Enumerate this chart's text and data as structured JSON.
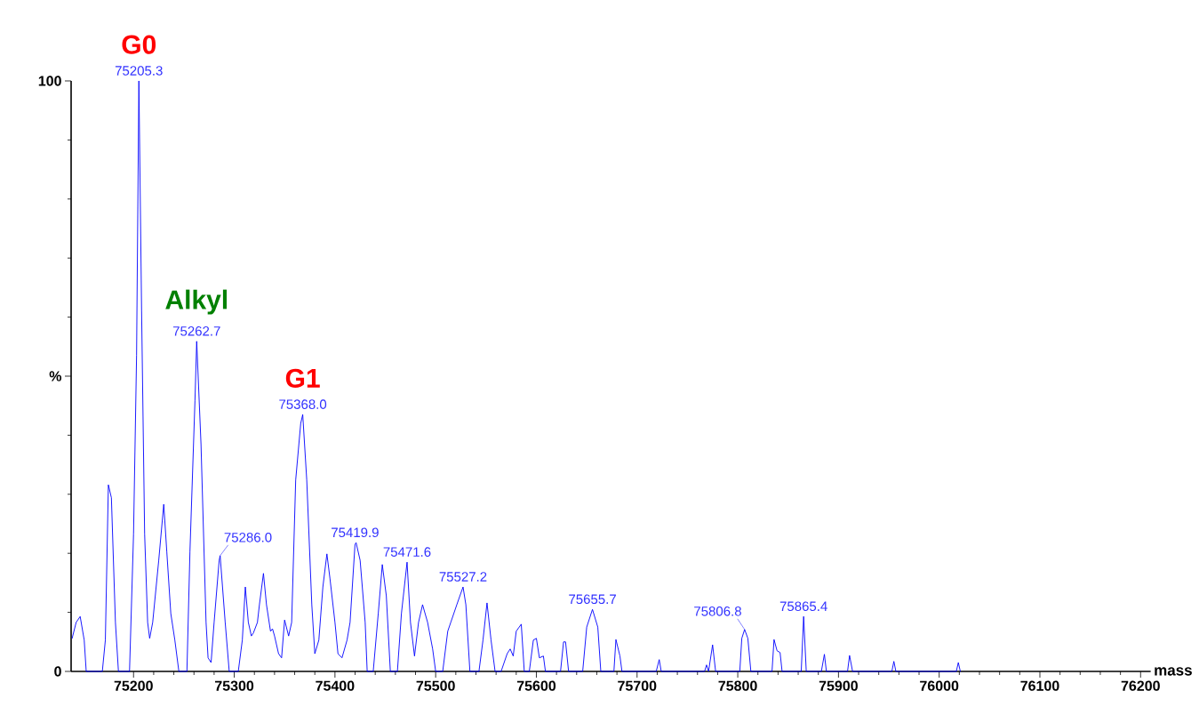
{
  "chart_data": {
    "type": "line",
    "xlabel": "mass",
    "x": [
      75139,
      75143,
      75147,
      75151,
      75153,
      75169,
      75172,
      75175,
      75178,
      75182,
      75185,
      75196,
      75200,
      75203,
      75205.3,
      75208,
      75211,
      75214,
      75216,
      75219,
      75225,
      75230,
      75233,
      75237,
      75241,
      75245,
      75253,
      75256,
      75261,
      75262.7,
      75267,
      75272,
      75274,
      75277,
      75280,
      75285,
      75286,
      75291,
      75295,
      75304,
      75308,
      75311,
      75314,
      75317,
      75319,
      75323,
      75325,
      75329,
      75332,
      75336,
      75338,
      75340,
      75344,
      75347,
      75350,
      75354,
      75357,
      75361,
      75366,
      75368,
      75372,
      75377,
      75380,
      75384,
      75388,
      75392,
      75395,
      75400,
      75403,
      75407,
      75412,
      75415,
      75419.9,
      75421,
      75425,
      75430,
      75432,
      75438,
      75443,
      75447,
      75451,
      75455,
      75462,
      75466,
      75471.6,
      75475,
      75479,
      75483,
      75487,
      75492,
      75497,
      75500,
      75507,
      75512,
      75515,
      75521,
      75527.2,
      75530,
      75534,
      75543,
      75547,
      75551,
      75555,
      75559,
      75565,
      75571,
      75574,
      75577,
      75580,
      75585,
      75588,
      75593,
      75597,
      75600,
      75603,
      75607,
      75609,
      75624,
      75627,
      75629,
      75632,
      75646,
      75650,
      75655.7,
      75661,
      75664,
      75677,
      75679,
      75683,
      75685,
      75719,
      75722,
      75724,
      75767,
      75769,
      75771,
      75775,
      75778,
      75781,
      75802,
      75804,
      75806.8,
      75810,
      75813,
      75834,
      75836,
      75839,
      75842,
      75844,
      75863,
      75865.4,
      75868,
      75883,
      75886,
      75888,
      75909,
      75911,
      75914,
      75953,
      75955,
      75957,
      76017,
      76019,
      76021
    ],
    "series": [
      {
        "color": "#0000ff",
        "values": [
          5.6,
          8.3,
          9.3,
          5.3,
          0,
          0,
          5.3,
          31.6,
          29.4,
          8.3,
          0,
          0,
          23.3,
          53.5,
          100,
          61.0,
          23.3,
          8.3,
          5.6,
          8.3,
          18.8,
          28.3,
          20.3,
          9.8,
          5.3,
          0,
          0,
          20.3,
          45.9,
          55.9,
          38.4,
          8.3,
          2.3,
          1.5,
          8.3,
          18.8,
          19.6,
          8.3,
          0,
          0,
          5.3,
          14.3,
          8.3,
          6.0,
          6.5,
          8.3,
          11.3,
          16.6,
          11.3,
          6.8,
          7.2,
          6.0,
          3.0,
          2.3,
          8.7,
          6.0,
          8.3,
          32.4,
          42.0,
          43.5,
          32.4,
          11.3,
          3.0,
          5.3,
          14.3,
          19.9,
          15.8,
          8.3,
          3.0,
          2.3,
          5.3,
          8.3,
          21.5,
          21.8,
          18.8,
          8.3,
          0,
          0,
          9.8,
          18.1,
          12.8,
          0,
          0,
          9.8,
          18.5,
          8.3,
          2.6,
          8.3,
          11.3,
          8.3,
          3.8,
          0,
          0,
          6.8,
          8.3,
          11.3,
          14.3,
          11.3,
          0,
          0,
          5.3,
          11.6,
          5.3,
          0,
          0,
          3.0,
          3.8,
          2.6,
          6.8,
          8.0,
          0,
          0,
          5.3,
          5.6,
          2.3,
          2.6,
          0,
          0,
          5.0,
          5.0,
          0,
          0,
          7.5,
          10.5,
          7.5,
          0,
          0,
          5.4,
          2.6,
          0,
          0,
          2.0,
          0,
          0,
          1.1,
          0,
          4.5,
          0,
          0,
          0,
          5.6,
          7.1,
          5.6,
          0,
          0,
          5.4,
          3.5,
          3.2,
          0,
          0,
          9.3,
          0,
          0,
          2.9,
          0,
          0,
          2.7,
          0,
          0,
          1.7,
          0,
          0,
          1.5,
          0
        ]
      }
    ],
    "xlim": [
      75138,
      76210
    ],
    "ylim": [
      0,
      100
    ],
    "xticks": [
      75200,
      75300,
      75400,
      75500,
      75600,
      75700,
      75800,
      75900,
      76000,
      76100,
      76200
    ],
    "yticks": [
      0,
      {
        "value": 50,
        "label": "%"
      },
      100
    ],
    "marker": "none",
    "line_style": "solid",
    "annotations": [
      {
        "text": "75205.3",
        "x": 75205.3,
        "y": 100
      },
      {
        "text": "G0",
        "x": 75205.3,
        "y": 100
      },
      {
        "text": "75262.7",
        "x": 75262.7,
        "y": 55.9
      },
      {
        "text": "Alkyl",
        "x": 75262.7,
        "y": 55.9
      },
      {
        "text": "75368.0",
        "x": 75368,
        "y": 43.5
      },
      {
        "text": "G1",
        "x": 75368,
        "y": 43.5
      },
      {
        "text": "75286.0",
        "x": 75286,
        "y": 19.6
      },
      {
        "text": "75419.9",
        "x": 75419.9,
        "y": 21.8
      },
      {
        "text": "75471.6",
        "x": 75471.6,
        "y": 18.5
      },
      {
        "text": "75527.2",
        "x": 75527.2,
        "y": 14.3
      },
      {
        "text": "75655.7",
        "x": 75655.7,
        "y": 10.5
      },
      {
        "text": "75806.8",
        "x": 75806.8,
        "y": 7.1
      },
      {
        "text": "75865.4",
        "x": 75865.4,
        "y": 9.3
      }
    ]
  }
}
